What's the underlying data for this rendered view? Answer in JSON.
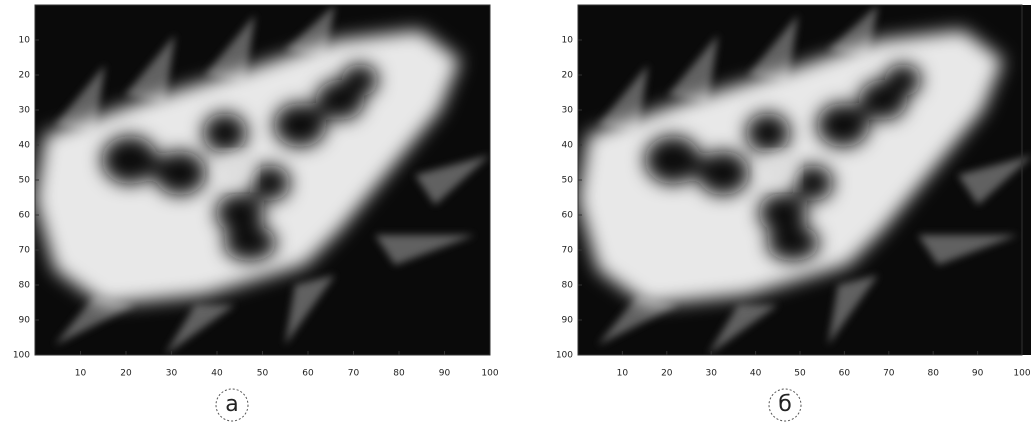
{
  "panels": [
    {
      "label": "а",
      "xticks": [
        10,
        20,
        30,
        40,
        50,
        60,
        70,
        80,
        90,
        100
      ],
      "yticks": [
        10,
        20,
        30,
        40,
        50,
        60,
        70,
        80,
        90,
        100
      ]
    },
    {
      "label": "б",
      "xticks": [
        10,
        20,
        30,
        40,
        50,
        60,
        70,
        80,
        90,
        100
      ],
      "yticks": [
        10,
        20,
        30,
        40,
        50,
        60,
        70,
        80,
        90,
        100
      ]
    }
  ]
}
